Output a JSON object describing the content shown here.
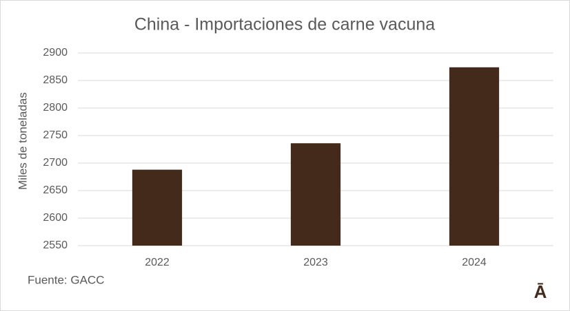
{
  "chart_data": {
    "type": "bar",
    "title": "China - Importaciones de carne vacuna",
    "y_label": "Miles de toneladas",
    "categories": [
      "2022",
      "2023",
      "2024"
    ],
    "values": [
      2688,
      2736,
      2874
    ],
    "color": "#432a1b",
    "ylim": [
      2550,
      2900
    ],
    "yticks": [
      2550,
      2600,
      2650,
      2700,
      2750,
      2800,
      2850,
      2900
    ],
    "grid": true,
    "source": "Fuente: GACC",
    "logo": "Ā"
  }
}
